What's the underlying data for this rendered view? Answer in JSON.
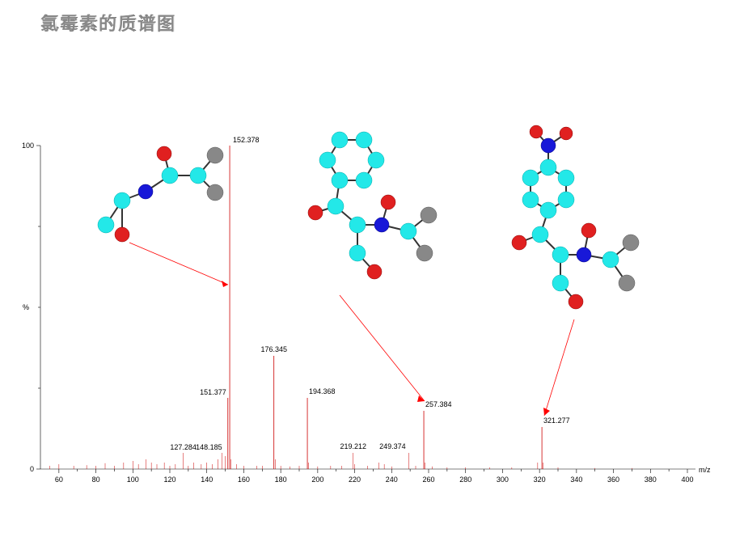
{
  "title": "氯霉素的质谱图",
  "chart": {
    "type": "mass-spectrum",
    "xlim": [
      50,
      400
    ],
    "xtick_step": 20,
    "ylim": [
      0,
      100
    ],
    "ytick_values": [
      0,
      100
    ],
    "ytick_mid_label": "%",
    "xlabel": "m/z",
    "background_color": "#ffffff",
    "peak_color": "#cc0000",
    "arrow_color": "#ff0000",
    "axis_color": "#000000",
    "font_size_ticks": 9,
    "font_size_peak_labels": 9,
    "title_fontsize": 22,
    "title_color": "#888888",
    "labeled_peaks": [
      {
        "mz": 127.284,
        "intensity": 5
      },
      {
        "mz": 148.185,
        "intensity": 5
      },
      {
        "mz": 151.377,
        "intensity": 22
      },
      {
        "mz": 152.378,
        "intensity": 100
      },
      {
        "mz": 176.345,
        "intensity": 35
      },
      {
        "mz": 194.368,
        "intensity": 22
      },
      {
        "mz": 219.212,
        "intensity": 5
      },
      {
        "mz": 249.374,
        "intensity": 5
      },
      {
        "mz": 257.384,
        "intensity": 18
      },
      {
        "mz": 321.277,
        "intensity": 13
      }
    ]
  },
  "molecules": {
    "colors": {
      "carbon": "#23e8e8",
      "nitrogen": "#1818d8",
      "oxygen": "#e02020",
      "chlorine": "#888888",
      "bond": "#333333"
    }
  }
}
